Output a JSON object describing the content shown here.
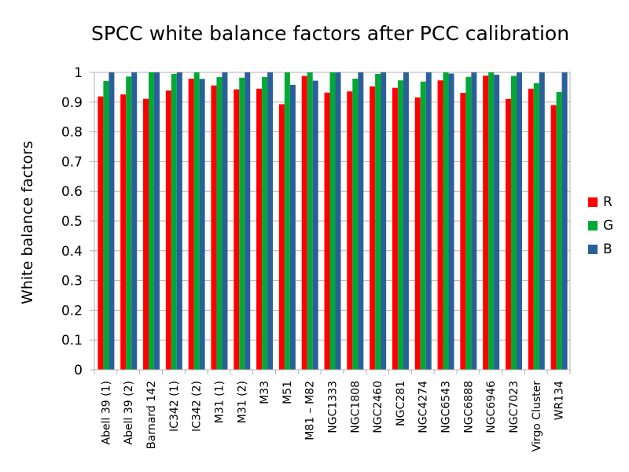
{
  "chart_data": {
    "type": "bar",
    "title": "SPCC white balance factors after PCC calibration",
    "xlabel": "",
    "ylabel": "White balance factors",
    "ylim": [
      0,
      1
    ],
    "yticks": [
      "0",
      "0.1",
      "0.2",
      "0.3",
      "0.4",
      "0.5",
      "0.6",
      "0.7",
      "0.8",
      "0.9",
      "1"
    ],
    "grid": true,
    "legend_position": "right",
    "categories": [
      "Abell 39 (1)",
      "Abell 39 (2)",
      "Barnard 142",
      "IC342 (1)",
      "IC342 (2)",
      "M31 (1)",
      "M31 (2)",
      "M33",
      "M51",
      "M81 – M82",
      "NGC1333",
      "NGC1808",
      "NGC2460",
      "NGC281",
      "NGC4274",
      "NGC6543",
      "NGC6888",
      "NGC6946",
      "NGC7023",
      "Virgo Cluster",
      "WR134"
    ],
    "series": [
      {
        "name": "R",
        "color": "#ff0000",
        "values": [
          0.919,
          0.926,
          0.911,
          0.939,
          0.979,
          0.956,
          0.943,
          0.945,
          0.893,
          0.988,
          0.932,
          0.936,
          0.953,
          0.948,
          0.916,
          0.973,
          0.931,
          0.989,
          0.911,
          0.945,
          0.89
        ]
      },
      {
        "name": "G",
        "color": "#00a933",
        "values": [
          0.971,
          0.986,
          1.0,
          0.995,
          1.0,
          0.984,
          0.982,
          0.984,
          1.0,
          1.0,
          1.0,
          0.979,
          0.995,
          0.973,
          0.969,
          1.0,
          0.985,
          1.0,
          0.988,
          0.964,
          0.934
        ]
      },
      {
        "name": "B",
        "color": "#2a6099",
        "values": [
          1.0,
          1.0,
          1.0,
          1.0,
          0.978,
          1.0,
          1.0,
          1.0,
          0.958,
          0.972,
          1.0,
          1.0,
          1.0,
          1.0,
          1.0,
          0.996,
          1.0,
          0.992,
          1.0,
          1.0,
          1.0
        ]
      }
    ]
  }
}
